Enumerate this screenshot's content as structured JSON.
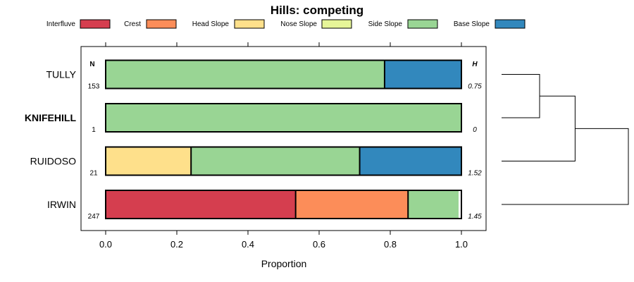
{
  "chart_data": {
    "type": "bar",
    "orientation": "horizontal",
    "stacked": true,
    "title": "Hills: competing",
    "xlabel": "Proportion",
    "ylabel": "",
    "xlim": [
      -0.07,
      1.07
    ],
    "x_ticks": [
      0.0,
      0.2,
      0.4,
      0.6,
      0.8,
      1.0
    ],
    "x_tick_labels": [
      "0.0",
      "0.2",
      "0.4",
      "0.6",
      "0.8",
      "1.0"
    ],
    "legend_position": "top",
    "legend": [
      {
        "name": "Interfluve",
        "color": "#D53E4F"
      },
      {
        "name": "Crest",
        "color": "#FC8D59"
      },
      {
        "name": "Head Slope",
        "color": "#FEE08B"
      },
      {
        "name": "Nose Slope",
        "color": "#E6F598"
      },
      {
        "name": "Side Slope",
        "color": "#99D594"
      },
      {
        "name": "Base Slope",
        "color": "#3288BD"
      }
    ],
    "column_headers": {
      "n": "N",
      "h": "H"
    },
    "categories": [
      "TULLY",
      "KNIFEHILL",
      "RUIDOSO",
      "IRWIN"
    ],
    "highlighted_category": "KNIFEHILL",
    "n": [
      "153",
      "1",
      "21",
      "247"
    ],
    "h": [
      "0.75",
      "0",
      "1.52",
      "1.45"
    ],
    "series": [
      {
        "name": "Interfluve",
        "values": [
          0,
          0,
          0,
          0.534
        ]
      },
      {
        "name": "Crest",
        "values": [
          0,
          0,
          0,
          0.316
        ]
      },
      {
        "name": "Head Slope",
        "values": [
          0,
          0,
          0.24,
          0
        ]
      },
      {
        "name": "Nose Slope",
        "values": [
          0,
          0,
          0,
          0
        ]
      },
      {
        "name": "Side Slope",
        "values": [
          0.784,
          1.0,
          0.474,
          0.142
        ]
      },
      {
        "name": "Base Slope",
        "values": [
          0.216,
          0,
          0.286,
          0
        ]
      }
    ],
    "dendrogram": {
      "merges": [
        {
          "left": "TULLY",
          "right": "KNIFEHILL",
          "height": 0.75
        },
        {
          "left": "TULLY+KNIFEHILL",
          "right": "RUIDOSO",
          "height": 1.45
        },
        {
          "left": "TULLY+KNIFEHILL+RUIDOSO",
          "right": "IRWIN",
          "height": 2.5
        }
      ]
    }
  }
}
